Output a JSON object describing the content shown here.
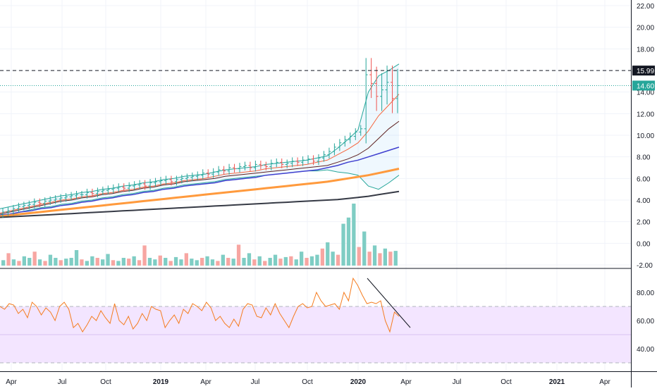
{
  "chart_data": [
    {
      "type": "candlestick",
      "pane": "price",
      "title": "",
      "y_axis": {
        "ticks": [
          "22.00",
          "20.00",
          "18.00",
          "16.00",
          "14.00",
          "12.00",
          "10.00",
          "8.00",
          "6.00",
          "4.00",
          "2.00",
          "0.00",
          "-2.00"
        ],
        "range": [
          -2,
          22.5
        ]
      },
      "x_axis": {
        "ticks": [
          "Apr",
          "Jul",
          "Oct",
          "2019",
          "Apr",
          "Jul",
          "Oct",
          "2020",
          "Apr",
          "Jul",
          "Oct",
          "2021",
          "Apr"
        ]
      },
      "price_levels": [
        {
          "label": "15.99",
          "value": 15.99,
          "style": "dashed",
          "color": "#131722"
        },
        {
          "label": "14.60",
          "value": 14.6,
          "style": "dotted",
          "color": "#26a69a"
        }
      ],
      "close_series_approx": [
        2.9,
        3.0,
        3.2,
        3.4,
        3.5,
        3.6,
        3.8,
        3.7,
        3.9,
        4.0,
        4.1,
        4.2,
        4.3,
        4.4,
        4.5,
        4.5,
        4.7,
        4.6,
        4.8,
        4.9,
        5.0,
        5.1,
        5.2,
        5.1,
        5.3,
        5.4,
        5.5,
        5.3,
        5.6,
        5.7,
        5.8,
        5.9,
        5.7,
        5.9,
        6.0,
        6.1,
        6.2,
        6.3,
        6.5,
        6.4,
        6.6,
        6.8,
        6.7,
        7.0,
        6.9,
        7.1,
        7.2,
        7.0,
        7.3,
        7.2,
        7.1,
        7.4,
        7.5,
        7.3,
        7.4,
        7.6,
        7.5,
        7.7,
        7.8,
        7.6,
        7.9,
        8.2,
        8.5,
        8.9,
        9.3,
        9.6,
        9.9,
        10.3,
        10.6,
        15.6,
        14.8,
        13.6,
        14.2,
        14.9,
        13.4,
        14.6
      ],
      "moving_averages": [
        {
          "name": "",
          "color": "#f6663f",
          "values": [
            2.8,
            3.0,
            3.2,
            3.4,
            3.6,
            3.8,
            4.0,
            4.1,
            4.3,
            4.4,
            4.6,
            4.7,
            4.9,
            5.0,
            5.2,
            5.3,
            5.5,
            5.6,
            5.8,
            5.9,
            6.0,
            6.2,
            6.4,
            6.5,
            6.6,
            6.7,
            6.9,
            7.0,
            7.1,
            7.2,
            7.3,
            7.5,
            7.7,
            8.2,
            8.7,
            9.3,
            10.4,
            11.8,
            12.8,
            13.8
          ]
        },
        {
          "name": "",
          "color": "#5d1f1f",
          "values": [
            2.7,
            2.9,
            3.1,
            3.3,
            3.5,
            3.7,
            3.9,
            4.0,
            4.2,
            4.3,
            4.5,
            4.6,
            4.8,
            4.9,
            5.1,
            5.2,
            5.4,
            5.5,
            5.7,
            5.8,
            5.9,
            6.0,
            6.2,
            6.3,
            6.4,
            6.5,
            6.6,
            6.7,
            6.8,
            6.9,
            7.0,
            7.1,
            7.2,
            7.5,
            7.8,
            8.2,
            8.8,
            9.7,
            10.6,
            11.3
          ]
        },
        {
          "name": "",
          "color": "#3f3fcf",
          "values": [
            2.6,
            2.7,
            2.9,
            3.0,
            3.2,
            3.3,
            3.5,
            3.6,
            3.8,
            3.9,
            4.1,
            4.2,
            4.4,
            4.5,
            4.7,
            4.8,
            5.0,
            5.1,
            5.3,
            5.4,
            5.5,
            5.6,
            5.8,
            5.9,
            6.0,
            6.1,
            6.3,
            6.4,
            6.5,
            6.6,
            6.7,
            6.8,
            7.0,
            7.2,
            7.5,
            7.7,
            8.0,
            8.3,
            8.6,
            8.9
          ]
        },
        {
          "name": "",
          "color": "#ff9a3d",
          "values": [
            2.5,
            2.6,
            2.7,
            2.8,
            2.9,
            3.0,
            3.1,
            3.2,
            3.3,
            3.4,
            3.5,
            3.6,
            3.7,
            3.8,
            3.9,
            4.0,
            4.1,
            4.2,
            4.3,
            4.4,
            4.5,
            4.6,
            4.7,
            4.8,
            4.9,
            5.0,
            5.1,
            5.2,
            5.3,
            5.4,
            5.5,
            5.6,
            5.7,
            5.85,
            6.0,
            6.15,
            6.3,
            6.5,
            6.7,
            6.9
          ]
        },
        {
          "name": "",
          "color": "#363a45",
          "values": [
            2.4,
            2.45,
            2.5,
            2.55,
            2.6,
            2.65,
            2.7,
            2.75,
            2.8,
            2.85,
            2.9,
            2.95,
            3.0,
            3.05,
            3.1,
            3.15,
            3.2,
            3.25,
            3.3,
            3.35,
            3.4,
            3.45,
            3.5,
            3.55,
            3.6,
            3.65,
            3.7,
            3.75,
            3.8,
            3.85,
            3.9,
            3.95,
            4.0,
            4.05,
            4.15,
            4.25,
            4.35,
            4.5,
            4.65,
            4.8
          ]
        }
      ],
      "bollinger_upper": [
        3.2,
        3.4,
        3.6,
        3.8,
        4.0,
        4.2,
        4.4,
        4.5,
        4.7,
        4.8,
        5.0,
        5.1,
        5.3,
        5.4,
        5.6,
        5.7,
        5.9,
        6.0,
        6.2,
        6.3,
        6.4,
        6.6,
        6.8,
        6.9,
        7.0,
        7.1,
        7.3,
        7.4,
        7.5,
        7.6,
        7.7,
        7.9,
        8.1,
        8.8,
        9.6,
        10.5,
        14.0,
        15.5,
        16.0,
        16.6
      ],
      "bollinger_lower": [
        2.6,
        2.7,
        2.9,
        3.1,
        3.3,
        3.4,
        3.6,
        3.7,
        3.9,
        4.0,
        4.2,
        4.3,
        4.5,
        4.6,
        4.8,
        4.9,
        5.1,
        5.2,
        5.4,
        5.5,
        5.6,
        5.7,
        5.9,
        6.0,
        6.1,
        6.2,
        6.3,
        6.4,
        6.5,
        6.6,
        6.7,
        6.7,
        6.8,
        6.6,
        6.5,
        6.3,
        5.3,
        5.0,
        5.6,
        6.3
      ],
      "volume_relative": [
        0.35,
        0.8,
        0.4,
        0.3,
        0.6,
        0.5,
        0.9,
        0.4,
        0.3,
        0.7,
        0.5,
        0.35,
        0.45,
        0.5,
        1.0,
        0.4,
        0.3,
        0.6,
        0.5,
        0.4,
        0.75,
        0.35,
        0.3,
        0.5,
        0.45,
        0.6,
        0.35,
        1.3,
        0.5,
        0.4,
        0.65,
        0.5,
        0.3,
        0.55,
        0.4,
        0.8,
        0.45,
        0.35,
        0.5,
        0.6,
        0.4,
        0.3,
        0.7,
        0.5,
        0.45,
        1.35,
        0.5,
        0.8,
        0.4,
        0.6,
        0.3,
        0.5,
        0.7,
        0.45,
        0.55,
        0.6,
        0.4,
        0.9,
        0.5,
        0.6,
        0.7,
        1.1,
        1.5,
        0.9,
        0.7,
        2.7,
        3.1,
        4.0,
        1.2,
        2.2,
        0.9,
        1.3,
        0.8,
        1.1,
        0.9,
        0.95
      ],
      "volume_up": [
        true,
        false,
        true,
        false,
        true,
        true,
        false,
        true,
        false,
        true,
        true,
        false,
        true,
        true,
        true,
        false,
        true,
        true,
        false,
        true,
        true,
        false,
        true,
        true,
        false,
        true,
        false,
        false,
        true,
        true,
        false,
        true,
        false,
        true,
        true,
        false,
        true,
        true,
        false,
        true,
        true,
        false,
        true,
        false,
        true,
        false,
        true,
        true,
        false,
        true,
        false,
        true,
        true,
        false,
        true,
        false,
        true,
        true,
        false,
        true,
        true,
        false,
        true,
        true,
        false,
        true,
        true,
        true,
        false,
        true,
        false,
        true,
        false,
        true,
        false,
        true
      ]
    },
    {
      "type": "line",
      "pane": "oscillator",
      "y_axis": {
        "ticks": [
          "80.00",
          "60.00",
          "40.00"
        ],
        "range": [
          26,
          95
        ]
      },
      "band": {
        "upper": 70,
        "lower": 30,
        "color": "#f3e5ff"
      },
      "values": [
        70,
        68,
        72,
        71,
        65,
        68,
        62,
        73,
        70,
        64,
        69,
        66,
        60,
        70,
        73,
        68,
        55,
        58,
        52,
        57,
        63,
        60,
        67,
        62,
        58,
        72,
        60,
        57,
        63,
        54,
        58,
        65,
        60,
        70,
        68,
        67,
        55,
        60,
        64,
        58,
        68,
        65,
        72,
        70,
        67,
        73,
        69,
        60,
        63,
        58,
        55,
        61,
        56,
        68,
        72,
        71,
        63,
        62,
        69,
        64,
        72,
        65,
        60,
        55,
        63,
        70,
        72,
        69,
        70,
        80,
        74,
        70,
        71,
        72,
        68,
        80,
        74,
        90,
        85,
        78,
        72,
        73,
        72,
        74,
        60,
        52,
        66,
        63
      ]
    }
  ]
}
